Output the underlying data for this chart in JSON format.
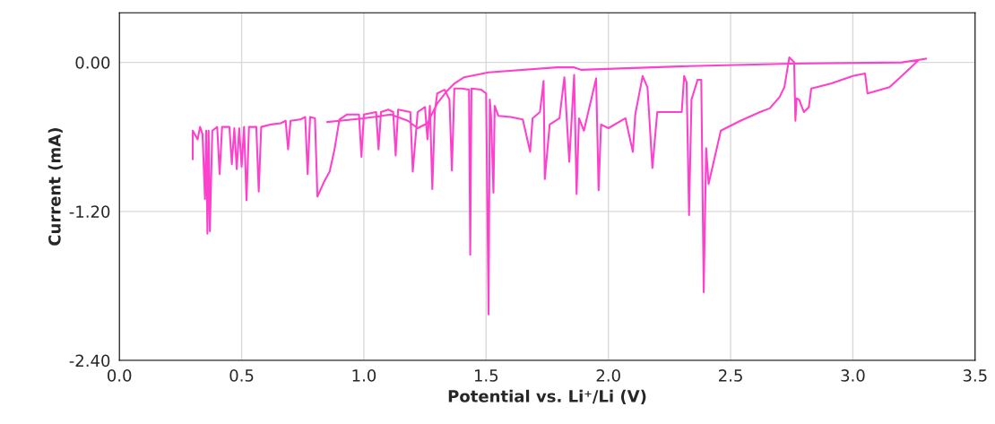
{
  "chart_data": {
    "type": "line",
    "xlabel": "Potential vs. Li⁺/Li (V)",
    "ylabel": "Current (mA)",
    "xlim": [
      0,
      3.5
    ],
    "ylim": [
      -2.4,
      0.4
    ],
    "xticks": [
      {
        "value": 0,
        "label": "0.0"
      },
      {
        "value": 0.5,
        "label": "0.5"
      },
      {
        "value": 1,
        "label": "1.0"
      },
      {
        "value": 1.5,
        "label": "1.5"
      },
      {
        "value": 2,
        "label": "2.0"
      },
      {
        "value": 2.5,
        "label": "2.5"
      },
      {
        "value": 3,
        "label": "3.0"
      },
      {
        "value": 3.5,
        "label": "3.5"
      }
    ],
    "yticks": [
      {
        "value": -2.4,
        "label": "-2.40"
      },
      {
        "value": -1.2,
        "label": "-1.20"
      },
      {
        "value": 0,
        "label": "0.00"
      }
    ],
    "grid": true,
    "marker": "none",
    "line_style": "solid",
    "series": [
      {
        "color": "#ff40cc",
        "x": [
          0.3,
          0.3,
          0.32,
          0.33,
          0.34,
          0.35,
          0.355,
          0.36,
          0.365,
          0.37,
          0.38,
          0.4,
          0.41,
          0.42,
          0.45,
          0.46,
          0.47,
          0.48,
          0.49,
          0.5,
          0.51,
          0.52,
          0.53,
          0.56,
          0.57,
          0.58,
          0.62,
          0.66,
          0.68,
          0.69,
          0.7,
          0.74,
          0.76,
          0.77,
          0.78,
          0.8,
          0.81,
          0.84,
          0.86,
          0.88,
          0.9,
          0.93,
          0.98,
          0.99,
          1.0,
          1.05,
          1.06,
          1.07,
          1.1,
          1.12,
          1.13,
          1.14,
          1.19,
          1.2,
          1.22,
          1.25,
          1.26,
          1.27,
          1.28,
          1.29,
          1.3,
          1.33,
          1.35,
          1.36,
          1.37,
          1.4,
          1.43,
          1.435,
          1.44,
          1.48,
          1.5,
          1.51,
          1.515,
          1.52,
          1.53,
          1.535,
          1.55,
          1.6,
          1.65,
          1.68,
          1.69,
          1.72,
          1.735,
          1.74,
          1.76,
          1.8,
          1.82,
          1.84,
          1.86,
          1.87,
          1.88,
          1.9,
          1.95,
          1.96,
          1.97,
          2.0,
          2.07,
          2.1,
          2.11,
          2.14,
          2.16,
          2.18,
          2.2,
          2.25,
          2.3,
          2.31,
          2.32,
          2.33,
          2.34,
          2.365,
          2.38,
          2.39,
          2.4,
          2.41,
          2.46,
          2.54,
          2.62,
          2.66,
          2.7,
          2.72,
          2.74,
          2.76,
          2.765,
          2.77,
          2.78,
          2.8,
          2.82,
          2.83,
          2.91,
          3.0,
          3.05,
          3.06,
          3.15,
          3.2,
          3.27,
          3.3,
          3.2,
          2.75,
          2.33,
          1.89,
          1.86,
          1.79,
          1.51,
          1.41,
          1.37,
          1.34,
          1.3,
          1.26,
          1.22,
          1.18,
          1.11,
          1.0,
          0.9,
          0.85
        ],
        "values": [
          -0.78,
          -0.55,
          -0.62,
          -0.52,
          -0.58,
          -1.1,
          -0.55,
          -1.38,
          -0.55,
          -1.36,
          -0.55,
          -0.52,
          -0.9,
          -0.52,
          -0.52,
          -0.82,
          -0.53,
          -0.86,
          -0.53,
          -0.84,
          -0.52,
          -1.11,
          -0.52,
          -0.52,
          -1.04,
          -0.52,
          -0.5,
          -0.49,
          -0.47,
          -0.7,
          -0.47,
          -0.46,
          -0.44,
          -0.9,
          -0.44,
          -0.45,
          -1.08,
          -0.95,
          -0.88,
          -0.7,
          -0.46,
          -0.42,
          -0.42,
          -0.76,
          -0.42,
          -0.4,
          -0.7,
          -0.4,
          -0.38,
          -0.4,
          -0.75,
          -0.38,
          -0.4,
          -0.88,
          -0.4,
          -0.36,
          -0.62,
          -0.35,
          -1.02,
          -0.4,
          -0.25,
          -0.22,
          -0.3,
          -0.87,
          -0.21,
          -0.21,
          -0.22,
          -1.55,
          -0.21,
          -0.22,
          -0.25,
          -2.03,
          -0.3,
          -0.43,
          -1.05,
          -0.35,
          -0.43,
          -0.44,
          -0.46,
          -0.72,
          -0.45,
          -0.4,
          -0.15,
          -0.94,
          -0.5,
          -0.45,
          -0.12,
          -0.8,
          -0.1,
          -1.06,
          -0.45,
          -0.55,
          -0.13,
          -1.03,
          -0.5,
          -0.53,
          -0.45,
          -0.72,
          -0.42,
          -0.11,
          -0.2,
          -0.85,
          -0.4,
          -0.4,
          -0.4,
          -0.11,
          -0.16,
          -1.23,
          -0.3,
          -0.14,
          -0.14,
          -1.85,
          -0.69,
          -0.98,
          -0.55,
          -0.47,
          -0.4,
          -0.37,
          -0.28,
          -0.2,
          0.04,
          0.0,
          -0.47,
          -0.29,
          -0.3,
          -0.4,
          -0.36,
          -0.21,
          -0.17,
          -0.11,
          -0.09,
          -0.25,
          -0.2,
          -0.11,
          0.02,
          0.03,
          0.0,
          -0.01,
          -0.03,
          -0.06,
          -0.04,
          -0.04,
          -0.08,
          -0.12,
          -0.17,
          -0.23,
          -0.33,
          -0.49,
          -0.53,
          -0.47,
          -0.42,
          -0.45,
          -0.47,
          -0.48
        ]
      }
    ]
  }
}
